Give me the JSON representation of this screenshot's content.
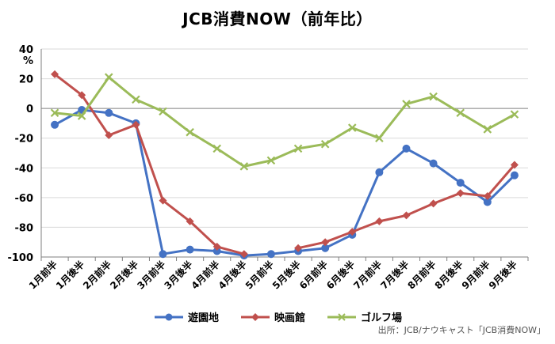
{
  "chart_data": {
    "type": "line",
    "title": "JCB消費NOW（前年比）",
    "unit_label": "%",
    "ylim": [
      -100,
      40
    ],
    "yticks": [
      -100,
      -80,
      -60,
      -40,
      -20,
      0,
      20,
      40
    ],
    "grid": "horizontal",
    "legend_position": "bottom",
    "categories": [
      "1月前半",
      "1月後半",
      "2月前半",
      "2月後半",
      "3月前半",
      "3月後半",
      "4月前半",
      "4月後半",
      "5月前半",
      "5月後半",
      "6月前半",
      "6月後半",
      "7月前半",
      "7月後半",
      "8月前半",
      "8月後半",
      "9月前半",
      "9月後半"
    ],
    "series": [
      {
        "name": "遊園地",
        "color": "#4472C4",
        "marker": "circle",
        "values": [
          -11,
          -1,
          -3,
          -10,
          -98,
          -95,
          -96,
          -99,
          -98,
          -96,
          -94,
          -85,
          -43,
          -27,
          -37,
          -50,
          -63,
          -45
        ]
      },
      {
        "name": "映画館",
        "color": "#C0504D",
        "marker": "diamond",
        "values": [
          23,
          9,
          -18,
          -11,
          -62,
          -76,
          -93,
          -98,
          null,
          -94,
          -90,
          -83,
          -76,
          -72,
          -64,
          -57,
          -59,
          -38
        ]
      },
      {
        "name": "ゴルフ場",
        "color": "#9BBB59",
        "marker": "x",
        "values": [
          -3,
          -5,
          21,
          6,
          -2,
          -16,
          -27,
          -39,
          -35,
          -27,
          -24,
          -13,
          -20,
          3,
          8,
          -3,
          -14,
          -4
        ]
      }
    ],
    "source": "出所：JCB/ナウキャスト「JCB消費NOW」"
  }
}
